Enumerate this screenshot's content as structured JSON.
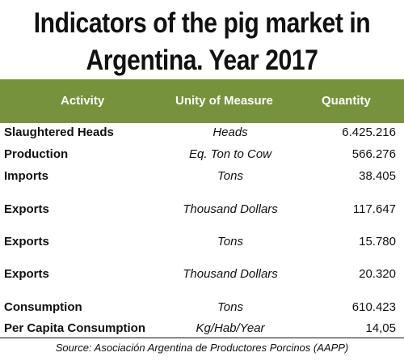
{
  "title_line1": "Indicators of the pig market in",
  "title_line2": "Argentina. Year 2017",
  "columns": {
    "activity": "Activity",
    "unit": "Unity of Measure",
    "quantity": "Quantity"
  },
  "rows": [
    {
      "activity": "Slaughtered Heads",
      "unit": "Heads",
      "quantity": "6.425.216"
    },
    {
      "activity": "Production",
      "unit": "Eq. Ton to Cow",
      "quantity": "566.276"
    },
    {
      "activity": "Imports",
      "unit": "Tons",
      "quantity": "38.405"
    },
    {
      "activity": "Exports",
      "unit": "Thousand Dollars",
      "quantity": "117.647"
    },
    {
      "activity": "Exports",
      "unit": "Tons",
      "quantity": "15.780"
    },
    {
      "activity": "Exports",
      "unit": "Thousand Dollars",
      "quantity": "20.320"
    },
    {
      "activity": "Consumption",
      "unit": "Tons",
      "quantity": "610.423"
    },
    {
      "activity": "Per Capita Consumption",
      "unit": "Kg/Hab/Year",
      "quantity": "14,05"
    }
  ],
  "source": "Source: Asociación Argentina de Productores Porcinos (AAPP)",
  "colors": {
    "header_bg": "#77923c",
    "header_text": "#ffffff"
  }
}
